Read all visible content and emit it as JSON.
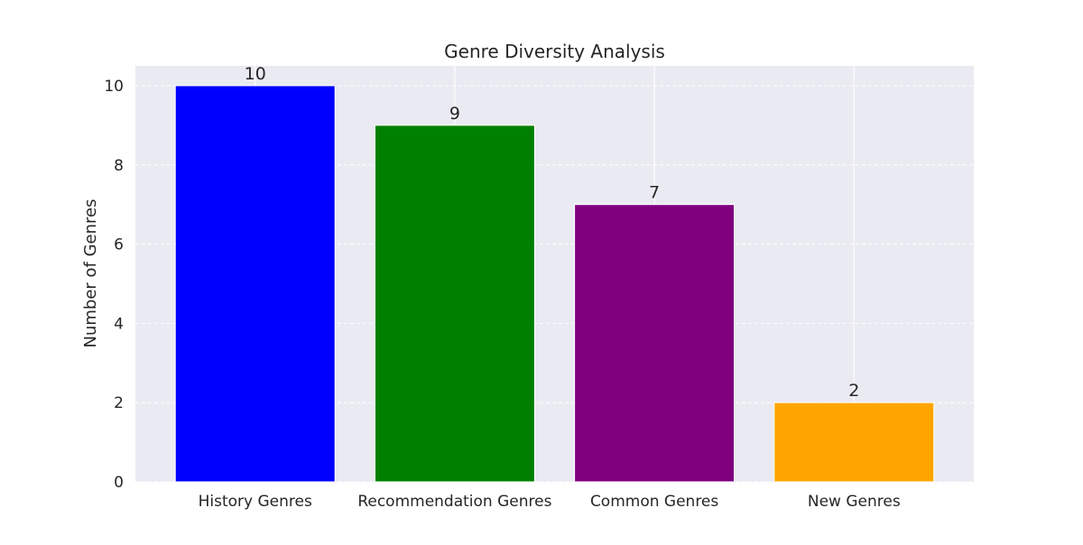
{
  "chart_data": {
    "type": "bar",
    "title": "Genre Diversity Analysis",
    "xlabel": "",
    "ylabel": "Number of Genres",
    "categories": [
      "History Genres",
      "Recommendation Genres",
      "Common Genres",
      "New Genres"
    ],
    "values": [
      10,
      9,
      7,
      2
    ],
    "colors": [
      "#0000ff",
      "#008000",
      "#800080",
      "#ffa500"
    ],
    "data_labels": [
      "10",
      "9",
      "7",
      "2"
    ],
    "ylim": [
      0,
      10.5
    ],
    "yticks": [
      0,
      2,
      4,
      6,
      8,
      10
    ],
    "ytick_labels": [
      "0",
      "2",
      "4",
      "6",
      "8",
      "10"
    ],
    "grid": true,
    "grid_style": "dashed",
    "plot_background": "#eaeaf2",
    "legend": "none"
  }
}
